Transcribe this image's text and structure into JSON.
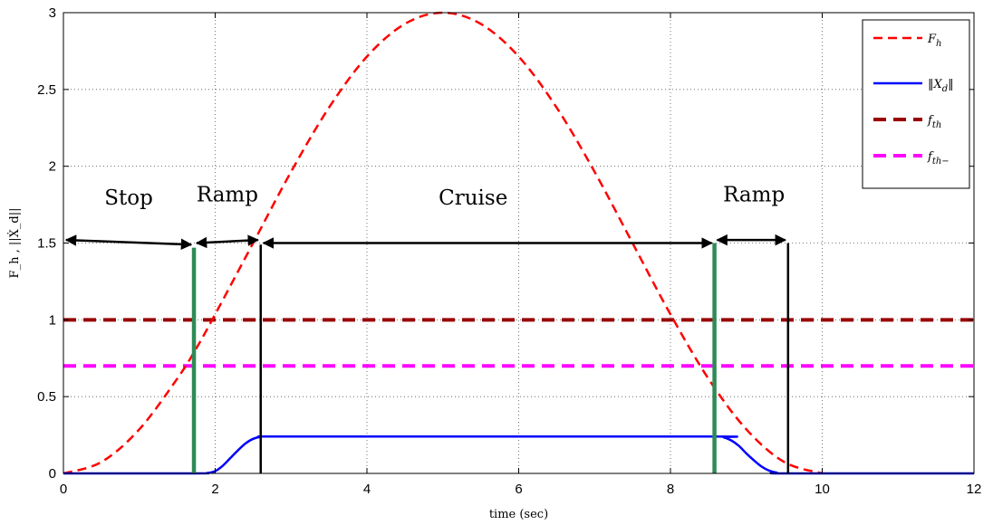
{
  "chart_data": {
    "type": "line",
    "title": "",
    "xlabel": "time (sec)",
    "ylabel": "F_h , ||Ẋ_d||",
    "xlim": [
      0,
      12
    ],
    "ylim": [
      0,
      3
    ],
    "x_ticks": [
      0,
      2,
      4,
      6,
      8,
      10,
      12
    ],
    "y_ticks": [
      0,
      0.5,
      1,
      1.5,
      2,
      2.5,
      3
    ],
    "x_tick_labels": [
      "0",
      "2",
      "4",
      "6",
      "8",
      "10",
      "12"
    ],
    "y_tick_labels": [
      "0",
      "0.5",
      "1",
      "1.5",
      "2",
      "2.5",
      "3"
    ],
    "grid": true,
    "legend_position": "top-right",
    "series": [
      {
        "name": "F_h",
        "legend_main": "F",
        "legend_sub": "h",
        "color": "#ff0000",
        "style": "dashed",
        "x": [
          0,
          0.5,
          1,
          1.5,
          1.75,
          2,
          2.5,
          3,
          3.5,
          4,
          4.5,
          5,
          5.5,
          6,
          6.5,
          7,
          7.5,
          8,
          8.5,
          9,
          9.5,
          10
        ],
        "y": [
          0,
          0.074,
          0.287,
          0.617,
          0.813,
          1.036,
          1.5,
          1.964,
          2.382,
          2.714,
          2.927,
          3.0,
          2.927,
          2.714,
          2.382,
          1.964,
          1.5,
          1.036,
          0.617,
          0.287,
          0.074,
          0
        ]
      },
      {
        "name": "||Ẋ_d||",
        "legend_main": "‖X",
        "legend_sub": "d",
        "legend_tail": "‖",
        "color": "#0000ff",
        "style": "solid",
        "x": [
          0,
          1.72,
          1.9,
          2.0,
          2.1,
          2.2,
          2.3,
          2.4,
          2.5,
          2.6,
          2.8,
          5,
          8.58,
          8.7,
          8.8,
          8.9,
          9.0,
          9.1,
          9.2,
          9.3,
          9.4,
          9.55,
          12
        ],
        "y": [
          0,
          0,
          0.003,
          0.015,
          0.05,
          0.1,
          0.15,
          0.195,
          0.225,
          0.238,
          0.24,
          0.24,
          0.24,
          0.235,
          0.215,
          0.18,
          0.13,
          0.085,
          0.045,
          0.018,
          0.005,
          0,
          0
        ]
      },
      {
        "name": "f_th",
        "legend_main": "f",
        "legend_sub": "th",
        "color": "#990000",
        "style": "thick-dashed",
        "x": [
          0,
          12
        ],
        "y": [
          1.0,
          1.0
        ]
      },
      {
        "name": "f_th-",
        "legend_main": "f",
        "legend_sub": "th−",
        "color": "#ff00ff",
        "style": "thick-dashed",
        "x": [
          0,
          12
        ],
        "y": [
          0.7,
          0.7
        ]
      }
    ],
    "vertical_markers": [
      {
        "x": 1.72,
        "y_top": 1.47,
        "color": "#2e8b57"
      },
      {
        "x": 2.6,
        "y_top": 1.49,
        "color": "#000000"
      },
      {
        "x": 8.58,
        "y_top": 1.5,
        "color": "#2e8b57"
      },
      {
        "x": 9.55,
        "y_top": 1.5,
        "color": "#000000"
      }
    ],
    "phase_arrows": [
      {
        "label": "Stop",
        "x_start": 0,
        "x_end": 1.72,
        "y_start": 1.52,
        "y_end": 1.49,
        "label_x": 0.86,
        "label_y": 1.75
      },
      {
        "label": "Ramp",
        "x_start": 1.72,
        "x_end": 2.6,
        "y_start": 1.5,
        "y_end": 1.52,
        "label_x": 2.16,
        "label_y": 1.77
      },
      {
        "label": "Cruise",
        "x_start": 2.6,
        "x_end": 8.58,
        "y_start": 1.5,
        "y_end": 1.5,
        "label_x": 5.4,
        "label_y": 1.75
      },
      {
        "label": "Ramp",
        "x_start": 8.58,
        "x_end": 9.55,
        "y_start": 1.52,
        "y_end": 1.52,
        "label_x": 9.1,
        "label_y": 1.77
      }
    ]
  }
}
